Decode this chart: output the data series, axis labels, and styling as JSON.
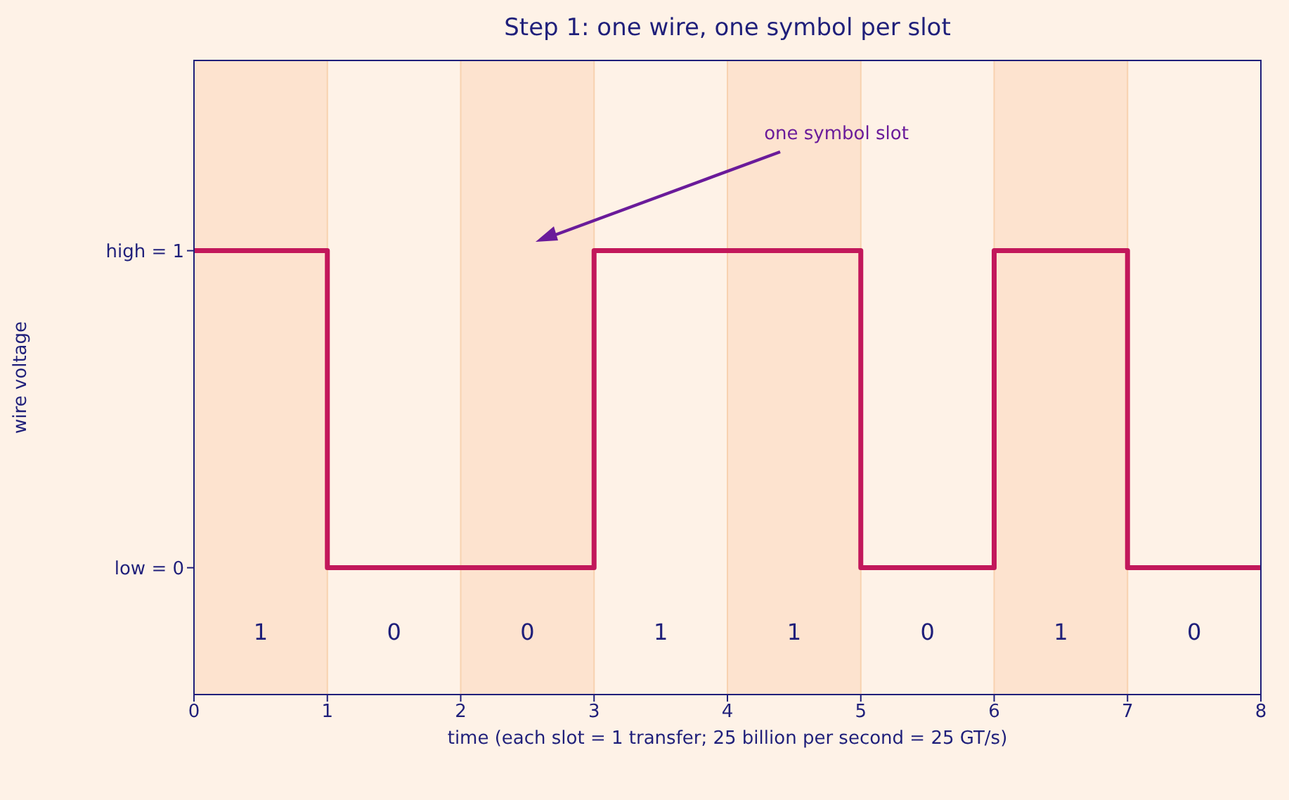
{
  "chart_data": {
    "type": "step",
    "title": "Step 1: one wire, one symbol per slot",
    "xlabel": "time  (each slot = 1 transfer; 25 billion per second = 25 GT/s)",
    "ylabel": "wire voltage",
    "x": [
      0,
      1,
      2,
      3,
      4,
      5,
      6,
      7,
      8
    ],
    "series": [
      {
        "color": "#c2185b",
        "values": [
          1,
          0,
          0,
          1,
          1,
          0,
          1,
          0,
          0
        ]
      }
    ],
    "xlim": [
      0,
      8
    ],
    "xticks": [
      0,
      1,
      2,
      3,
      4,
      5,
      6,
      7,
      8
    ],
    "ylim": [
      -0.4,
      1.6
    ],
    "yticks": [
      {
        "value": 0,
        "label": "low = 0"
      },
      {
        "value": 1,
        "label": "high = 1"
      }
    ],
    "bands": [
      {
        "axis": "x",
        "from": 0,
        "to": 1,
        "color": "#fde3cf"
      },
      {
        "axis": "x",
        "from": 2,
        "to": 3,
        "color": "#fde3cf"
      },
      {
        "axis": "x",
        "from": 4,
        "to": 5,
        "color": "#fde3cf"
      },
      {
        "axis": "x",
        "from": 6,
        "to": 7,
        "color": "#fde3cf"
      }
    ],
    "annotations": [
      "one symbol slot",
      "1",
      "0",
      "0",
      "1",
      "1",
      "0",
      "1",
      "0"
    ],
    "grid": false,
    "legend": false,
    "marker": "none",
    "line_style": "solid"
  }
}
